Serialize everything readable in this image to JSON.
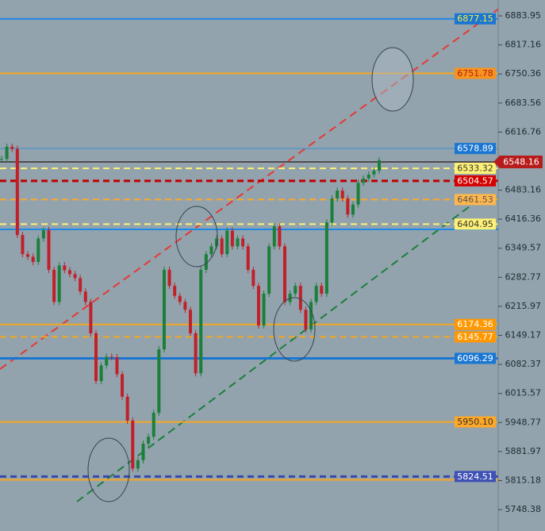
{
  "chart_data": {
    "type": "candlestick",
    "closes": [
      6555,
      6583,
      6578,
      6380,
      6336,
      6330,
      6318,
      6372,
      6391,
      6300,
      6226,
      6310,
      6299,
      6290,
      6281,
      6250,
      6226,
      6154,
      6044,
      6080,
      6100,
      6099,
      6060,
      6008,
      5953,
      5843,
      5862,
      5900,
      5916,
      5971,
      6117,
      6300,
      6263,
      6240,
      6226,
      6208,
      6154,
      6062,
      6300,
      6336,
      6354,
      6372,
      6336,
      6390,
      6354,
      6372,
      6354,
      6300,
      6263,
      6172,
      6245,
      6354,
      6400,
      6354,
      6226,
      6245,
      6263,
      6208,
      6163,
      6226,
      6263,
      6245,
      6409,
      6464,
      6482,
      6464,
      6427,
      6450,
      6500,
      6510,
      6519,
      6528,
      6552
    ],
    "up_color": "#1b7f3a",
    "down_color": "#c0202a",
    "ylim": [
      5699.2,
      6920.5
    ],
    "yticks": [
      6883.95,
      6817.16,
      6750.36,
      6683.56,
      6616.76,
      6483.16,
      6416.36,
      6349.57,
      6282.77,
      6215.97,
      6149.17,
      6082.37,
      6015.57,
      5948.77,
      5881.97,
      5815.18,
      5748.38
    ],
    "last_price": 6548.16,
    "levels": [
      {
        "price": 6877.15,
        "color": "#1e88e5",
        "width": 2,
        "dashed": false,
        "label_bg": "#1976d2",
        "label_color": "#ffeb3b"
      },
      {
        "price": 6751.78,
        "color": "#f5a623",
        "width": 2,
        "dashed": false,
        "label_bg": "#f7941d",
        "label_color": "#b71c1c"
      },
      {
        "price": 6578.89,
        "color": "#3a8fd0",
        "width": 1,
        "dashed": false,
        "label_bg": "#1976d2",
        "label_color": "#ffffff"
      },
      {
        "price": 6533.32,
        "color": "#fff176",
        "width": 2,
        "dashed": true,
        "label_bg": "#fff176",
        "label_color": "#333333"
      },
      {
        "price": 6504.57,
        "color": "#c00000",
        "width": 3,
        "dashed": true,
        "label_bg": "#d50000",
        "label_color": "#ffffff"
      },
      {
        "price": 6461.53,
        "color": "#ffa726",
        "width": 2,
        "dashed": true,
        "label_bg": "#ffb74d",
        "label_color": "#555555"
      },
      {
        "price": 6404.95,
        "color": "#fff176",
        "width": 2,
        "dashed": true,
        "label_bg": "#fff176",
        "label_color": "#333333"
      },
      {
        "price": 6393,
        "color": "#1e88e5",
        "width": 2,
        "dashed": false
      },
      {
        "price": 6174.36,
        "color": "#f5a623",
        "width": 2,
        "dashed": false,
        "label_bg": "#ff9800",
        "label_color": "#ffffff"
      },
      {
        "price": 6145.77,
        "color": "#f5a623",
        "width": 2,
        "dashed": true,
        "label_bg": "#ff9800",
        "label_color": "#ffffff"
      },
      {
        "price": 6096.29,
        "color": "#1976d2",
        "width": 3,
        "dashed": false,
        "label_bg": "#1976d2",
        "label_color": "#ffffff"
      },
      {
        "price": {
          "value": 5950.1,
          "label": "5950.10"
        },
        "color": "#f5a623",
        "width": 2,
        "dashed": false,
        "label_bg": "#ffa726",
        "label_color": "#333333"
      },
      {
        "price": 5824.51,
        "color": "#3949ab",
        "width": 3,
        "dashed": true,
        "label_bg": "#3f51b5",
        "label_color": "#ffffff"
      },
      {
        "price": 5817,
        "color": "#f5a623",
        "width": 2,
        "dashed": false
      }
    ]
  }
}
